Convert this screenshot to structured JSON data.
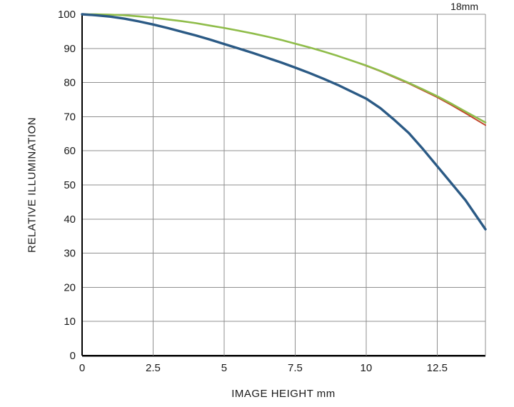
{
  "header": {
    "focal_length_label": "18mm"
  },
  "chart_data": {
    "type": "line",
    "title": "18mm",
    "xlabel": "IMAGE HEIGHT   mm",
    "ylabel": "RELATIVE ILLUMINATION",
    "xlim": [
      0,
      14.2
    ],
    "ylim": [
      0,
      100
    ],
    "x_ticks": [
      0,
      2.5,
      5,
      7.5,
      10,
      12.5
    ],
    "x_tick_labels": [
      "0",
      "2.5",
      "5",
      "7.5",
      "10",
      "12.5"
    ],
    "y_ticks": [
      0,
      10,
      20,
      30,
      40,
      50,
      60,
      70,
      80,
      90,
      100
    ],
    "y_tick_labels": [
      "0",
      "10",
      "20",
      "30",
      "40",
      "50",
      "60",
      "70",
      "80",
      "90",
      "100"
    ],
    "grid": true,
    "legend": "none",
    "grid_color": "#8f8f8f",
    "axis_color": "#000000",
    "x": [
      0,
      0.5,
      1,
      1.5,
      2,
      2.5,
      3,
      3.5,
      4,
      4.5,
      5,
      5.5,
      6,
      6.5,
      7,
      7.5,
      8,
      8.5,
      9,
      9.5,
      10,
      10.5,
      11,
      11.5,
      12,
      12.5,
      13,
      13.5,
      14.2
    ],
    "series": [
      {
        "name": "stopped-down-red",
        "color": "#c2452c",
        "width": 2,
        "values": [
          100,
          100,
          99.9,
          99.7,
          99.4,
          99,
          98.5,
          98,
          97.4,
          96.7,
          96,
          95.2,
          94.4,
          93.5,
          92.5,
          91.4,
          90.3,
          89.1,
          87.8,
          86.4,
          84.9,
          83.3,
          81.5,
          79.7,
          77.7,
          75.7,
          73.4,
          71,
          67.5
        ]
      },
      {
        "name": "stopped-down-green",
        "color": "#8fbd4a",
        "width": 2.6,
        "values": [
          100,
          100,
          99.9,
          99.7,
          99.4,
          99,
          98.5,
          98,
          97.4,
          96.7,
          96,
          95.2,
          94.4,
          93.5,
          92.5,
          91.4,
          90.3,
          89.1,
          87.8,
          86.4,
          85,
          83.4,
          81.7,
          79.9,
          78,
          76,
          73.8,
          71.5,
          68.3
        ]
      },
      {
        "name": "wide-open-blue",
        "color": "#2b5a85",
        "width": 3.4,
        "values": [
          100,
          99.7,
          99.3,
          98.7,
          97.9,
          97,
          96,
          94.9,
          93.8,
          92.6,
          91.3,
          90,
          88.7,
          87.3,
          85.9,
          84.4,
          82.8,
          81.1,
          79.3,
          77.3,
          75.3,
          72.5,
          69,
          65.2,
          60.5,
          55.5,
          50.5,
          45.5,
          37
        ]
      }
    ]
  }
}
